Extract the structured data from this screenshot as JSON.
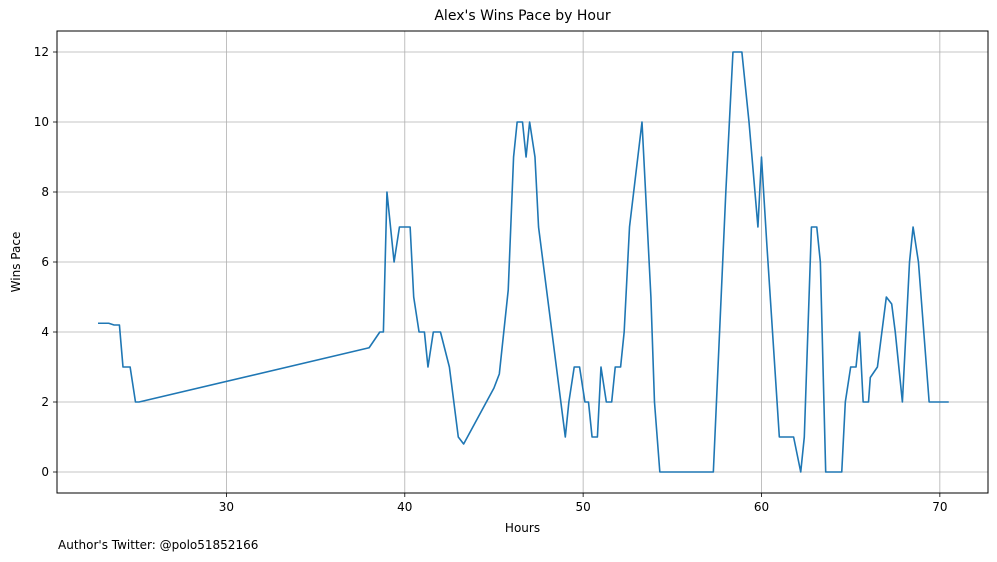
{
  "chart_data": {
    "type": "line",
    "title": "Alex's Wins Pace by Hour",
    "xlabel": "Hours",
    "ylabel": "Wins Pace",
    "xlim": [
      20.5,
      72.7
    ],
    "ylim": [
      -0.6,
      12.6
    ],
    "xticks": [
      30,
      40,
      50,
      60,
      70
    ],
    "yticks": [
      0,
      2,
      4,
      6,
      8,
      10,
      12
    ],
    "grid": true,
    "line_color": "#1f77b4",
    "series": [
      {
        "x": [
          22.8,
          23.4,
          23.7,
          24.0,
          24.2,
          24.6,
          24.9,
          25.1,
          38.0,
          38.6,
          38.8,
          39.0,
          39.4,
          39.7,
          40.0,
          40.3,
          40.5,
          40.8,
          41.1,
          41.3,
          41.6,
          42.0,
          42.5,
          43.0,
          43.3,
          45.0,
          45.3,
          45.8,
          46.1,
          46.3,
          46.6,
          46.8,
          47.0,
          47.3,
          47.5,
          48.0,
          49.0,
          49.2,
          49.5,
          49.8,
          50.1,
          50.3,
          50.5,
          50.8,
          51.0,
          51.3,
          51.6,
          51.8,
          52.1,
          52.3,
          52.6,
          53.3,
          53.6,
          53.8,
          54.0,
          54.3,
          57.3,
          58.0,
          58.4,
          58.9,
          59.3,
          59.8,
          60.0,
          60.3,
          61.0,
          61.3,
          61.8,
          62.2,
          62.4,
          62.6,
          62.8,
          63.1,
          63.3,
          63.6,
          64.2,
          64.5,
          64.7,
          65.0,
          65.3,
          65.5,
          65.7,
          66.0,
          66.1,
          66.5,
          67.0,
          67.3,
          67.5,
          67.9,
          68.1,
          68.3,
          68.5,
          68.8,
          69.1,
          69.4,
          69.8,
          70.1,
          70.5
        ],
        "y": [
          4.25,
          4.25,
          4.2,
          4.2,
          3.0,
          3.0,
          2.0,
          2.0,
          3.55,
          4.0,
          4.0,
          8.0,
          6.0,
          7.0,
          7.0,
          7.0,
          5.0,
          4.0,
          4.0,
          3.0,
          4.0,
          4.0,
          3.0,
          1.0,
          0.8,
          2.4,
          2.8,
          5.2,
          9.0,
          10.0,
          10.0,
          9.0,
          10.0,
          9.0,
          7.0,
          5.0,
          1.0,
          2.0,
          3.0,
          3.0,
          2.0,
          2.0,
          1.0,
          1.0,
          3.0,
          2.0,
          2.0,
          3.0,
          3.0,
          4.0,
          7.0,
          10.0,
          7.0,
          5.0,
          2.0,
          0.0,
          0.0,
          8.0,
          12.0,
          12.0,
          10.0,
          7.0,
          9.0,
          6.5,
          1.0,
          1.0,
          1.0,
          0.0,
          1.0,
          4.0,
          7.0,
          7.0,
          6.0,
          0.0,
          0.0,
          0.0,
          2.0,
          3.0,
          3.0,
          4.0,
          2.0,
          2.0,
          2.7,
          3.0,
          5.0,
          4.8,
          4.0,
          2.0,
          4.0,
          6.0,
          7.0,
          6.0,
          4.0,
          2.0,
          2.0,
          2.0,
          2.0
        ]
      }
    ]
  },
  "footer": {
    "text": "Author's Twitter: @polo51852166"
  }
}
